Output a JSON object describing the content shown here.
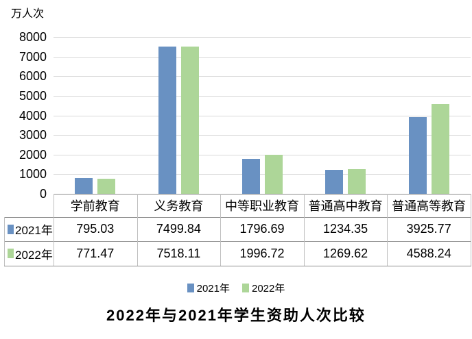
{
  "chart_data": {
    "type": "bar",
    "title": "2022年与2021年学生资助人次比较",
    "unit_label": "万人次",
    "categories": [
      "学前教育",
      "义务教育",
      "中等职业教育",
      "普通高中教育",
      "普通高等教育"
    ],
    "series": [
      {
        "name": "2021年",
        "color": "#6991C2",
        "values": [
          795.03,
          7499.84,
          1796.69,
          1234.35,
          3925.77
        ]
      },
      {
        "name": "2022年",
        "color": "#ADD698",
        "values": [
          771.47,
          7518.11,
          1996.72,
          1269.62,
          4588.24
        ]
      }
    ],
    "ylim": [
      0,
      8000
    ],
    "ytick_step": 1000,
    "yticks": [
      0,
      1000,
      2000,
      3000,
      4000,
      5000,
      6000,
      7000,
      8000
    ],
    "grid": true,
    "legend_position": "bottom",
    "data_table": true,
    "value_format_decimals": 2
  },
  "colors": {
    "background": "#FFFFFF",
    "gridline": "#D9D9D9",
    "axis_line": "#8C8C8C",
    "table_border_horizontal": "#8C8C8C",
    "table_border_vertical": "#BFBFBF",
    "text": "#000000"
  }
}
